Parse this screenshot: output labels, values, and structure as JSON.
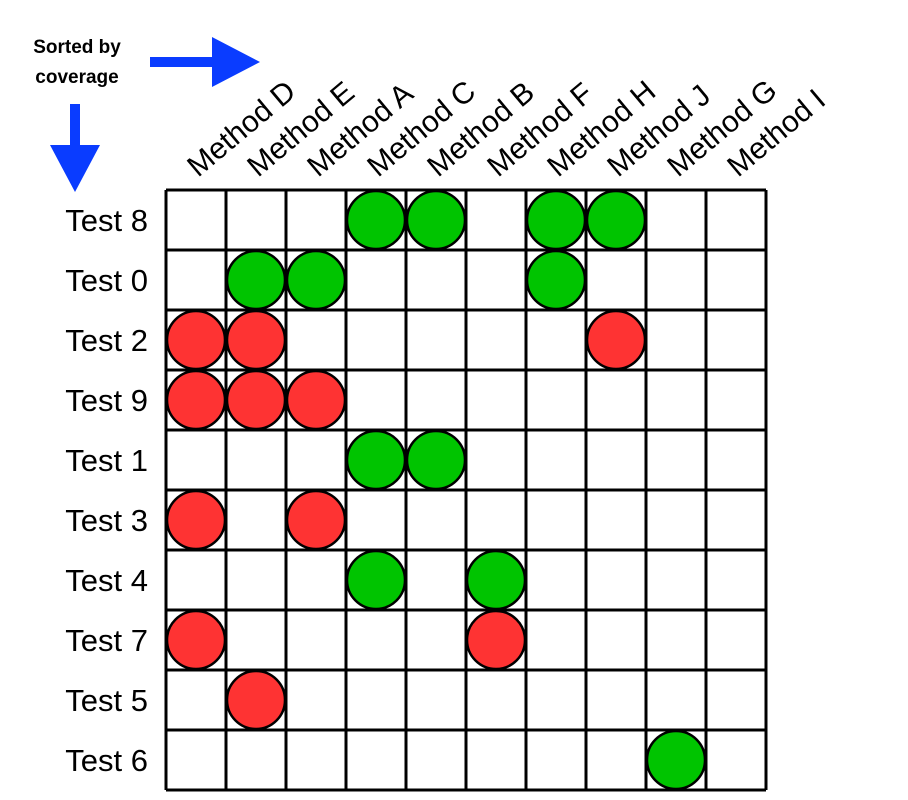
{
  "annotation": {
    "line1": "Sorted by",
    "line2": "coverage"
  },
  "arrow_color": "#0a3cff",
  "columns": [
    "Method D",
    "Method E",
    "Method A",
    "Method C",
    "Method B",
    "Method F",
    "Method H",
    "Method J",
    "Method G",
    "Method I"
  ],
  "rows": [
    "Test 8",
    "Test 0",
    "Test 2",
    "Test 9",
    "Test 1",
    "Test 3",
    "Test 4",
    "Test 7",
    "Test 5",
    "Test 6"
  ],
  "colors": {
    "green": "#00c400",
    "red": "#fe3333"
  },
  "cells": [
    {
      "row": 0,
      "col": 3,
      "color": "green"
    },
    {
      "row": 0,
      "col": 4,
      "color": "green"
    },
    {
      "row": 0,
      "col": 6,
      "color": "green"
    },
    {
      "row": 0,
      "col": 7,
      "color": "green"
    },
    {
      "row": 1,
      "col": 1,
      "color": "green"
    },
    {
      "row": 1,
      "col": 2,
      "color": "green"
    },
    {
      "row": 1,
      "col": 6,
      "color": "green"
    },
    {
      "row": 2,
      "col": 0,
      "color": "red"
    },
    {
      "row": 2,
      "col": 1,
      "color": "red"
    },
    {
      "row": 2,
      "col": 7,
      "color": "red"
    },
    {
      "row": 3,
      "col": 0,
      "color": "red"
    },
    {
      "row": 3,
      "col": 1,
      "color": "red"
    },
    {
      "row": 3,
      "col": 2,
      "color": "red"
    },
    {
      "row": 4,
      "col": 3,
      "color": "green"
    },
    {
      "row": 4,
      "col": 4,
      "color": "green"
    },
    {
      "row": 5,
      "col": 0,
      "color": "red"
    },
    {
      "row": 5,
      "col": 2,
      "color": "red"
    },
    {
      "row": 6,
      "col": 3,
      "color": "green"
    },
    {
      "row": 6,
      "col": 5,
      "color": "green"
    },
    {
      "row": 7,
      "col": 0,
      "color": "red"
    },
    {
      "row": 7,
      "col": 5,
      "color": "red"
    },
    {
      "row": 8,
      "col": 1,
      "color": "red"
    },
    {
      "row": 9,
      "col": 8,
      "color": "green"
    }
  ]
}
